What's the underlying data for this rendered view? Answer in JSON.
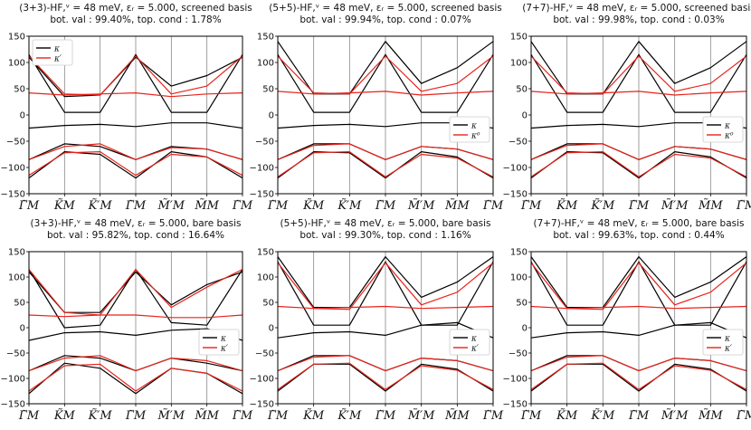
{
  "colors": {
    "K": "#000000",
    "Kp": "#e8231a",
    "axis": "#000000",
    "vline": "#888888"
  },
  "chart_data": [
    {
      "type": "line",
      "title_line1": "(3+3)-HF,ᵛ = 48 meV, εᵣ = 5.000, screened basis",
      "title_line2": "bot. val : 99.40%, top. cond : 1.78%",
      "ylim": [
        -150,
        150
      ],
      "yticks": [
        "150",
        "100",
        "50",
        "0",
        "−50",
        "−100",
        "−150"
      ],
      "ytick_values": [
        150,
        100,
        50,
        0,
        -50,
        -100,
        -150
      ],
      "xtick_labels": [
        "Γ̃M",
        "K̃M",
        "K̃′M",
        "Γ̃M",
        "M̃′M",
        "M̃M",
        "Γ̃M"
      ],
      "xtick_positions": [
        0,
        1,
        2,
        3,
        4,
        5,
        6
      ],
      "legend": {
        "placement": "top-left",
        "entries": [
          "κ",
          "κ′"
        ]
      },
      "series": [
        {
          "name": "κ",
          "color": "K",
          "values": [
            115,
            5,
            5,
            115,
            5,
            5,
            115
          ]
        },
        {
          "name": "κ",
          "color": "K",
          "values": [
            110,
            35,
            38,
            110,
            55,
            75,
            110
          ]
        },
        {
          "name": "κ",
          "color": "K",
          "values": [
            -25,
            -20,
            -18,
            -22,
            -15,
            -15,
            -25
          ]
        },
        {
          "name": "κ",
          "color": "K",
          "values": [
            -85,
            -55,
            -60,
            -85,
            -60,
            -65,
            -85
          ]
        },
        {
          "name": "κ",
          "color": "K",
          "values": [
            -120,
            -70,
            -75,
            -120,
            -70,
            -80,
            -120
          ]
        },
        {
          "name": "κ′",
          "color": "Kp",
          "values": [
            112,
            40,
            38,
            112,
            40,
            55,
            112
          ]
        },
        {
          "name": "κ′",
          "color": "Kp",
          "values": [
            42,
            38,
            40,
            42,
            35,
            40,
            42
          ]
        },
        {
          "name": "κ′",
          "color": "Kp",
          "values": [
            -85,
            -60,
            -55,
            -85,
            -62,
            -65,
            -85
          ]
        },
        {
          "name": "κ′",
          "color": "Kp",
          "values": [
            -115,
            -72,
            -70,
            -115,
            -75,
            -80,
            -115
          ]
        }
      ]
    },
    {
      "type": "line",
      "title_line1": "(5+5)-HF,ᵛ = 48 meV, εᵣ = 5.000, screened basis",
      "title_line2": "bot. val : 99.94%, top. cond : 0.07%",
      "ylim": [
        -150,
        150
      ],
      "yticks": [
        "150",
        "100",
        "50",
        "0",
        "−50",
        "−100",
        "−150"
      ],
      "ytick_values": [
        150,
        100,
        50,
        0,
        -50,
        -100,
        -150
      ],
      "xtick_labels": [
        "Γ̃M",
        "K̃M",
        "K̃′M",
        "Γ̃M",
        "M̃′M",
        "M̃M",
        "Γ̃M"
      ],
      "xtick_positions": [
        0,
        1,
        2,
        3,
        4,
        5,
        6
      ],
      "legend": {
        "placement": "right",
        "entries": [
          "κ",
          "κ⁰"
        ]
      },
      "series": [
        {
          "name": "κ",
          "color": "K",
          "values": [
            115,
            5,
            5,
            115,
            5,
            5,
            115
          ]
        },
        {
          "name": "κ",
          "color": "K",
          "values": [
            140,
            40,
            40,
            140,
            60,
            90,
            140
          ]
        },
        {
          "name": "κ",
          "color": "K",
          "values": [
            -25,
            -20,
            -18,
            -22,
            -15,
            -15,
            -25
          ]
        },
        {
          "name": "κ",
          "color": "K",
          "values": [
            -85,
            -55,
            -55,
            -85,
            -60,
            -65,
            -85
          ]
        },
        {
          "name": "κ",
          "color": "K",
          "values": [
            -120,
            -70,
            -72,
            -120,
            -70,
            -80,
            -120
          ]
        },
        {
          "name": "κ⁰",
          "color": "Kp",
          "values": [
            112,
            42,
            40,
            112,
            45,
            60,
            112
          ]
        },
        {
          "name": "κ⁰",
          "color": "Kp",
          "values": [
            45,
            40,
            42,
            45,
            38,
            42,
            45
          ]
        },
        {
          "name": "κ⁰",
          "color": "Kp",
          "values": [
            -85,
            -58,
            -55,
            -85,
            -60,
            -65,
            -85
          ]
        },
        {
          "name": "κ⁰",
          "color": "Kp",
          "values": [
            -118,
            -72,
            -70,
            -118,
            -75,
            -82,
            -118
          ]
        }
      ]
    },
    {
      "type": "line",
      "title_line1": "(7+7)-HF,ᵛ = 48 meV, εᵣ = 5.000, screened basis",
      "title_line2": "bot. val : 99.98%, top. cond : 0.03%",
      "ylim": [
        -150,
        150
      ],
      "yticks": [
        "150",
        "100",
        "50",
        "0",
        "−50",
        "−100",
        "−150"
      ],
      "ytick_values": [
        150,
        100,
        50,
        0,
        -50,
        -100,
        -150
      ],
      "xtick_labels": [
        "Γ̃M",
        "K̃M",
        "K̃′M",
        "Γ̃M",
        "M̃′M",
        "M̃M",
        "Γ̃M"
      ],
      "xtick_positions": [
        0,
        1,
        2,
        3,
        4,
        5,
        6
      ],
      "legend": {
        "placement": "right",
        "entries": [
          "κ",
          "κ⁰"
        ]
      },
      "series": [
        {
          "name": "κ",
          "color": "K",
          "values": [
            115,
            5,
            5,
            115,
            5,
            5,
            115
          ]
        },
        {
          "name": "κ",
          "color": "K",
          "values": [
            140,
            40,
            40,
            140,
            60,
            90,
            140
          ]
        },
        {
          "name": "κ",
          "color": "K",
          "values": [
            -25,
            -20,
            -18,
            -22,
            -15,
            -15,
            -25
          ]
        },
        {
          "name": "κ",
          "color": "K",
          "values": [
            -85,
            -55,
            -55,
            -85,
            -60,
            -65,
            -85
          ]
        },
        {
          "name": "κ",
          "color": "K",
          "values": [
            -120,
            -70,
            -72,
            -120,
            -70,
            -80,
            -120
          ]
        },
        {
          "name": "κ⁰",
          "color": "Kp",
          "values": [
            112,
            42,
            40,
            112,
            45,
            60,
            112
          ]
        },
        {
          "name": "κ⁰",
          "color": "Kp",
          "values": [
            45,
            40,
            42,
            45,
            38,
            42,
            45
          ]
        },
        {
          "name": "κ⁰",
          "color": "Kp",
          "values": [
            -85,
            -58,
            -55,
            -85,
            -60,
            -65,
            -85
          ]
        },
        {
          "name": "κ⁰",
          "color": "Kp",
          "values": [
            -118,
            -72,
            -70,
            -118,
            -75,
            -82,
            -118
          ]
        }
      ]
    },
    {
      "type": "line",
      "title_line1": "(3+3)-HF,ᵛ = 48 meV, εᵣ = 5.000, bare basis",
      "title_line2": "bot. val : 95.82%, top. cond : 16.64%",
      "ylim": [
        -150,
        150
      ],
      "yticks": [
        "150",
        "100",
        "50",
        "0",
        "−50",
        "−100",
        "−150"
      ],
      "ytick_values": [
        150,
        100,
        50,
        0,
        -50,
        -100,
        -150
      ],
      "xtick_labels": [
        "Γ̃M",
        "K̃M",
        "K̃′M",
        "Γ̃M",
        "M̃′M",
        "M̃M",
        "Γ̃M"
      ],
      "xtick_positions": [
        0,
        1,
        2,
        3,
        4,
        5,
        6
      ],
      "legend": {
        "placement": "right",
        "entries": [
          "κ",
          "κ′"
        ]
      },
      "series": [
        {
          "name": "κ",
          "color": "K",
          "values": [
            115,
            0,
            5,
            115,
            10,
            5,
            115
          ]
        },
        {
          "name": "κ",
          "color": "K",
          "values": [
            110,
            30,
            30,
            110,
            45,
            85,
            110
          ]
        },
        {
          "name": "κ",
          "color": "K",
          "values": [
            -25,
            -10,
            -8,
            -15,
            -5,
            -2,
            -25
          ]
        },
        {
          "name": "κ",
          "color": "K",
          "values": [
            -85,
            -55,
            -60,
            -85,
            -60,
            -70,
            -85
          ]
        },
        {
          "name": "κ",
          "color": "K",
          "values": [
            -130,
            -70,
            -80,
            -130,
            -80,
            -90,
            -130
          ]
        },
        {
          "name": "κ′",
          "color": "Kp",
          "values": [
            115,
            30,
            25,
            115,
            40,
            80,
            115
          ]
        },
        {
          "name": "κ′",
          "color": "Kp",
          "values": [
            25,
            22,
            25,
            25,
            20,
            20,
            25
          ]
        },
        {
          "name": "κ′",
          "color": "Kp",
          "values": [
            -85,
            -60,
            -55,
            -85,
            -60,
            -65,
            -85
          ]
        },
        {
          "name": "κ′",
          "color": "Kp",
          "values": [
            -125,
            -75,
            -72,
            -125,
            -80,
            -90,
            -125
          ]
        }
      ]
    },
    {
      "type": "line",
      "title_line1": "(5+5)-HF,ᵛ = 48 meV, εᵣ = 5.000, bare basis",
      "title_line2": "bot. val : 99.30%, top. cond : 1.16%",
      "ylim": [
        -150,
        150
      ],
      "yticks": [
        "150",
        "100",
        "50",
        "0",
        "−50",
        "−100",
        "−150"
      ],
      "ytick_values": [
        150,
        100,
        50,
        0,
        -50,
        -100,
        -150
      ],
      "xtick_labels": [
        "Γ̃M",
        "K̃M",
        "K̃′M",
        "Γ̃M",
        "M̃′M",
        "M̃M",
        "Γ̃M"
      ],
      "xtick_positions": [
        0,
        1,
        2,
        3,
        4,
        5,
        6
      ],
      "legend": {
        "placement": "right",
        "entries": [
          "κ",
          "κ′"
        ]
      },
      "series": [
        {
          "name": "κ",
          "color": "K",
          "values": [
            130,
            5,
            5,
            130,
            5,
            5,
            130
          ]
        },
        {
          "name": "κ",
          "color": "K",
          "values": [
            140,
            40,
            40,
            140,
            60,
            90,
            140
          ]
        },
        {
          "name": "κ",
          "color": "K",
          "values": [
            -20,
            -10,
            -8,
            -15,
            5,
            10,
            -20
          ]
        },
        {
          "name": "κ",
          "color": "K",
          "values": [
            -85,
            -55,
            -55,
            -85,
            -60,
            -65,
            -85
          ]
        },
        {
          "name": "κ",
          "color": "K",
          "values": [
            -125,
            -72,
            -72,
            -125,
            -72,
            -82,
            -125
          ]
        },
        {
          "name": "κ′",
          "color": "Kp",
          "values": [
            128,
            38,
            36,
            128,
            45,
            70,
            128
          ]
        },
        {
          "name": "κ′",
          "color": "Kp",
          "values": [
            42,
            38,
            40,
            42,
            38,
            40,
            42
          ]
        },
        {
          "name": "κ′",
          "color": "Kp",
          "values": [
            -85,
            -58,
            -55,
            -85,
            -60,
            -65,
            -85
          ]
        },
        {
          "name": "κ′",
          "color": "Kp",
          "values": [
            -122,
            -72,
            -70,
            -122,
            -75,
            -84,
            -122
          ]
        }
      ]
    },
    {
      "type": "line",
      "title_line1": "(7+7)-HF,ᵛ = 48 meV, εᵣ = 5.000, bare basis",
      "title_line2": "bot. val : 99.63%, top. cond : 0.44%",
      "ylim": [
        -150,
        150
      ],
      "yticks": [
        "150",
        "100",
        "50",
        "0",
        "−50",
        "−100",
        "−150"
      ],
      "ytick_values": [
        150,
        100,
        50,
        0,
        -50,
        -100,
        -150
      ],
      "xtick_labels": [
        "Γ̃M",
        "K̃M",
        "K̃′M",
        "Γ̃M",
        "M̃′M",
        "M̃M",
        "Γ̃M"
      ],
      "xtick_positions": [
        0,
        1,
        2,
        3,
        4,
        5,
        6
      ],
      "legend": {
        "placement": "right",
        "entries": [
          "κ",
          "κ′"
        ]
      },
      "series": [
        {
          "name": "κ",
          "color": "K",
          "values": [
            130,
            5,
            5,
            130,
            5,
            5,
            130
          ]
        },
        {
          "name": "κ",
          "color": "K",
          "values": [
            140,
            40,
            40,
            140,
            60,
            90,
            140
          ]
        },
        {
          "name": "κ",
          "color": "K",
          "values": [
            -20,
            -10,
            -8,
            -15,
            5,
            10,
            -20
          ]
        },
        {
          "name": "κ",
          "color": "K",
          "values": [
            -85,
            -55,
            -55,
            -85,
            -60,
            -65,
            -85
          ]
        },
        {
          "name": "κ",
          "color": "K",
          "values": [
            -125,
            -72,
            -72,
            -125,
            -72,
            -82,
            -125
          ]
        },
        {
          "name": "κ′",
          "color": "Kp",
          "values": [
            128,
            38,
            36,
            128,
            45,
            70,
            128
          ]
        },
        {
          "name": "κ′",
          "color": "Kp",
          "values": [
            42,
            38,
            40,
            42,
            38,
            40,
            42
          ]
        },
        {
          "name": "κ′",
          "color": "Kp",
          "values": [
            -85,
            -58,
            -55,
            -85,
            -60,
            -65,
            -85
          ]
        },
        {
          "name": "κ′",
          "color": "Kp",
          "values": [
            -122,
            -72,
            -70,
            -122,
            -75,
            -84,
            -122
          ]
        }
      ]
    }
  ]
}
